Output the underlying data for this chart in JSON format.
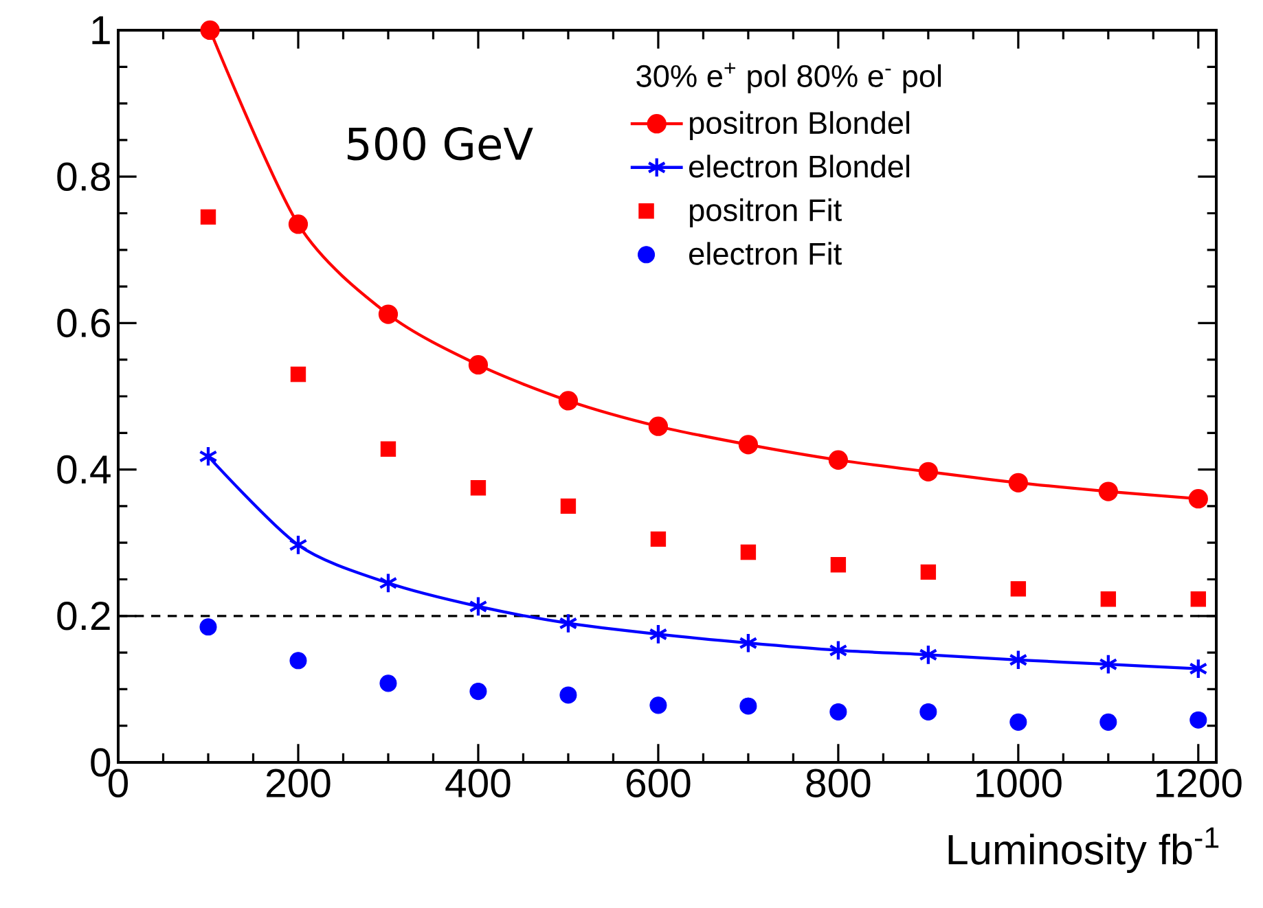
{
  "chart_data": {
    "type": "line",
    "xlabel": "Luminosity fb$^{-1}$",
    "legend_title": "30% e$^{+}$ pol 80% e$^{-}$ pol",
    "annotations": [
      "500 GeV"
    ],
    "x": [
      100,
      200,
      300,
      400,
      500,
      600,
      700,
      800,
      900,
      1000,
      1100,
      1200
    ],
    "xlim": [
      0,
      1220
    ],
    "ylim": [
      0,
      1
    ],
    "xticks": [
      0,
      200,
      400,
      600,
      800,
      1000,
      1200
    ],
    "yticks": [
      0,
      0.2,
      0.4,
      0.6,
      0.8,
      1
    ],
    "legend": "top right",
    "grid": false,
    "ref_lines": [
      {
        "axis": "y",
        "value": 0.2,
        "line_style": "dashed",
        "color": "#000000"
      }
    ],
    "series": [
      {
        "name": "positron Blondel",
        "marker": "circle",
        "line_style": "solid",
        "color": "#ff0000",
        "x": [
          102,
          200,
          300,
          400,
          500,
          600,
          700,
          800,
          900,
          1000,
          1100,
          1200
        ],
        "values": [
          1.0,
          0.735,
          0.612,
          0.543,
          0.494,
          0.459,
          0.434,
          0.413,
          0.397,
          0.382,
          0.37,
          0.36
        ]
      },
      {
        "name": "electron Blondel",
        "marker": "cross",
        "line_style": "solid",
        "color": "#0000ff",
        "values": [
          0.418,
          0.297,
          0.245,
          0.213,
          0.19,
          0.175,
          0.163,
          0.153,
          0.147,
          0.14,
          0.134,
          0.128
        ]
      },
      {
        "name": "positron Fit",
        "type": "scatter",
        "marker": "square",
        "color": "#ff0000",
        "values": [
          0.745,
          0.53,
          0.428,
          0.375,
          0.35,
          0.305,
          0.287,
          0.27,
          0.26,
          0.237,
          0.223,
          0.223
        ]
      },
      {
        "name": "electron Fit",
        "type": "scatter",
        "marker": "circle",
        "color": "#0000ff",
        "values": [
          0.185,
          0.139,
          0.108,
          0.097,
          0.092,
          0.078,
          0.077,
          0.069,
          0.069,
          0.055,
          0.055,
          0.058
        ]
      }
    ]
  }
}
